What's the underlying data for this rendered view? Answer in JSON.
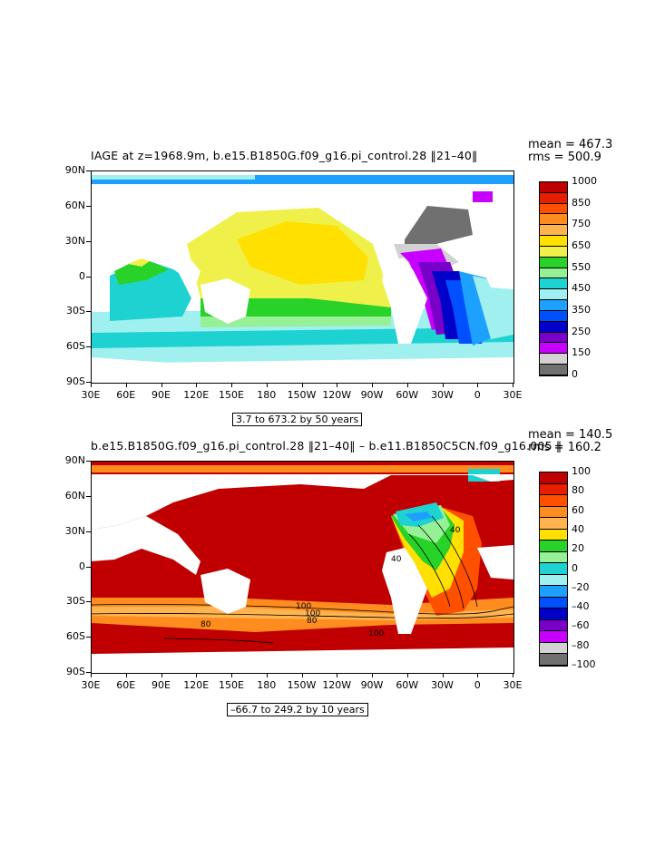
{
  "top_panel": {
    "title": "IAGE at z=1968.9m, b.e15.B1850G.f09_g16.pi_control.28 ‖21–40‖",
    "mean": "mean = 467.3",
    "rms": "rms = 500.9",
    "range_label": "3.7 to 673.2 by 50 years",
    "lat_labels": [
      "90N",
      "60N",
      "30N",
      "0",
      "30S",
      "60S",
      "90S"
    ],
    "lon_labels": [
      "30E",
      "60E",
      "90E",
      "120E",
      "150E",
      "180",
      "150W",
      "120W",
      "90W",
      "60W",
      "30W",
      "0",
      "30E"
    ],
    "colorbar_labels": [
      "1000",
      "850",
      "750",
      "650",
      "550",
      "450",
      "350",
      "250",
      "150",
      "0"
    ],
    "colorbar_colors": [
      "#c00000",
      "#e81e00",
      "#ff5000",
      "#ff8c1e",
      "#ffb450",
      "#ffe000",
      "#f0f04a",
      "#28d228",
      "#96f096",
      "#1ed2d2",
      "#a0f0f0",
      "#1ea0ff",
      "#0050ff",
      "#0000c8",
      "#7800c8",
      "#c800ff",
      "#d2d2d2",
      "#707070"
    ]
  },
  "bottom_panel": {
    "title": "b.e15.B1850G.f09_g16.pi_control.28 ‖21–40‖ – b.e11.B1850C5CN.f09_g16.005 ‖",
    "mean": "mean = 140.5",
    "rms": "rms = 160.2",
    "range_label": "–66.7 to 249.2 by 10 years",
    "lat_labels": [
      "90N",
      "60N",
      "30N",
      "0",
      "30S",
      "60S",
      "90S"
    ],
    "lon_labels": [
      "30E",
      "60E",
      "90E",
      "120E",
      "150E",
      "180",
      "150W",
      "120W",
      "90W",
      "60W",
      "30W",
      "0",
      "30E"
    ],
    "colorbar_labels": [
      "100",
      "80",
      "60",
      "40",
      "20",
      "0",
      "–20",
      "–40",
      "–60",
      "–80",
      "–100"
    ],
    "colorbar_colors": [
      "#c00000",
      "#e81e00",
      "#ff5000",
      "#ff8c1e",
      "#ffb450",
      "#ffe000",
      "#28d228",
      "#96f096",
      "#1ed2d2",
      "#a0f0f0",
      "#1ea0ff",
      "#0050ff",
      "#0000c8",
      "#7800c8",
      "#c800ff",
      "#d2d2d2",
      "#707070"
    ],
    "contour_labels": [
      "100",
      "80",
      "100",
      "80",
      "100",
      "40",
      "40"
    ]
  }
}
